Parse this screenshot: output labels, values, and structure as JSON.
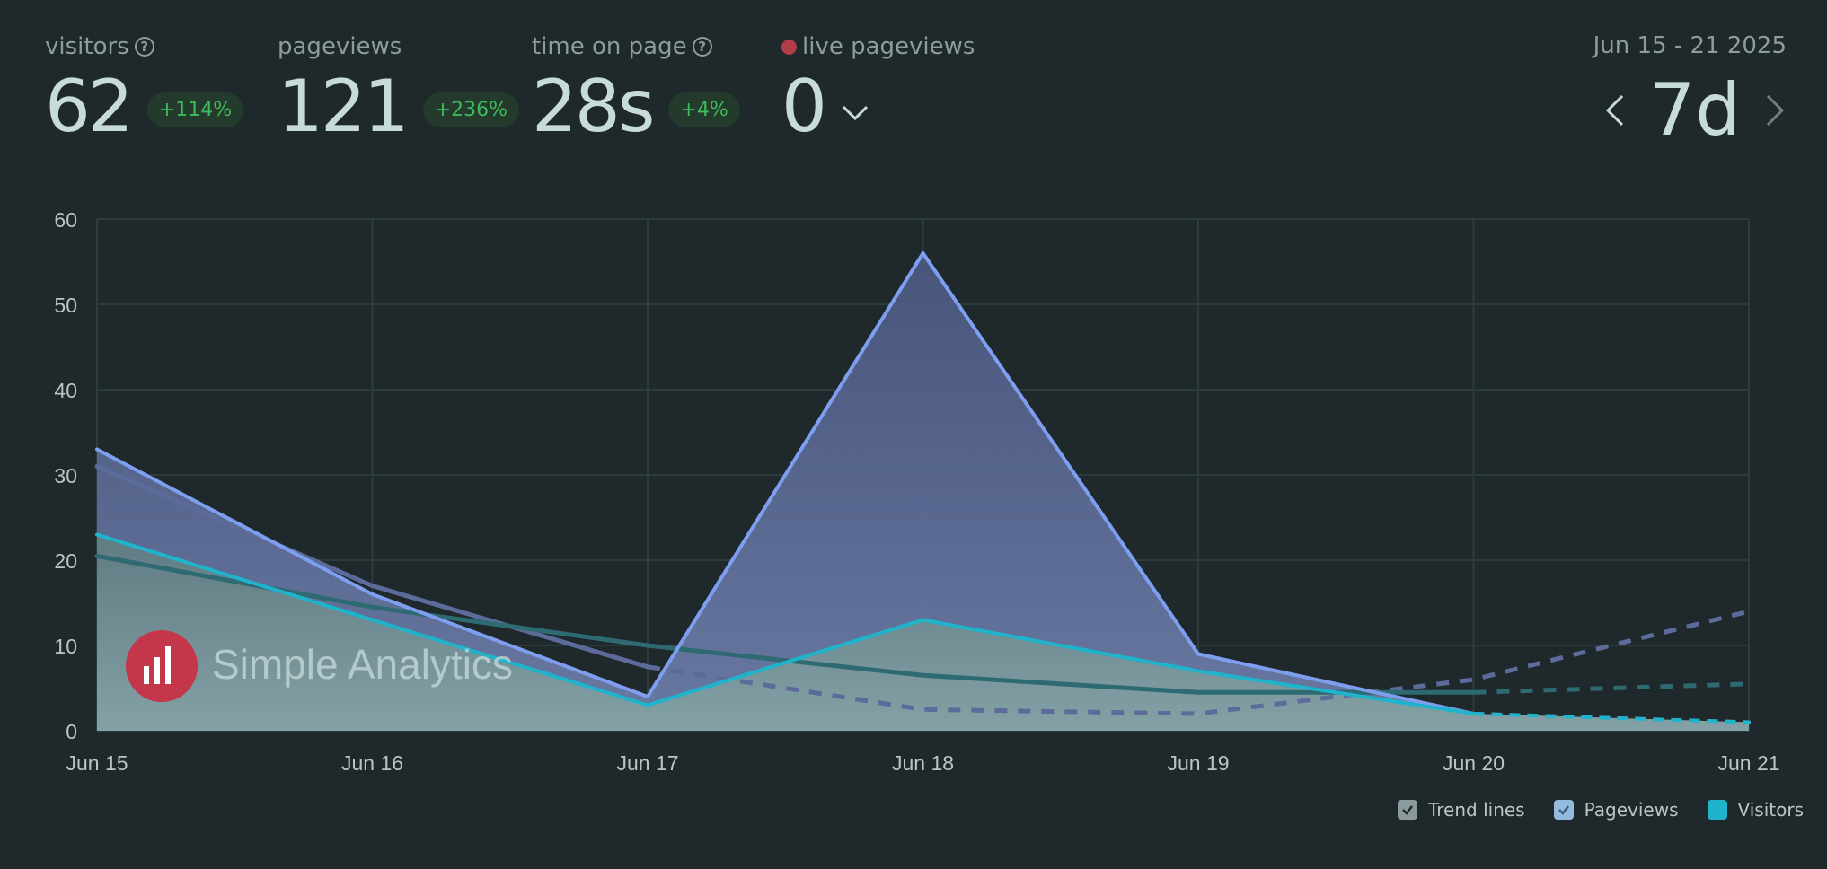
{
  "stats": {
    "visitors": {
      "label": "visitors",
      "value": "62",
      "change": "+114%"
    },
    "pageviews": {
      "label": "pageviews",
      "value": "121",
      "change": "+236%"
    },
    "time_on_page": {
      "label": "time on page",
      "value": "28s",
      "change": "+4%"
    },
    "live": {
      "label": "live pageviews",
      "value": "0"
    }
  },
  "period": {
    "date_range": "Jun 15 - 21 2025",
    "value": "7d"
  },
  "legend": {
    "trend": "Trend lines",
    "pageviews": "Pageviews",
    "visitors": "Visitors"
  },
  "watermark": {
    "text": "Simple Analytics"
  },
  "colors": {
    "background": "#1f282a",
    "pageviews": "#7e9ef0",
    "visitors": "#1fb3cc",
    "badge_text": "#3dbb5a",
    "live_dot": "#b23c4a",
    "logo": "#c4364a"
  },
  "chart_data": {
    "type": "area",
    "categories": [
      "Jun 15",
      "Jun 16",
      "Jun 17",
      "Jun 18",
      "Jun 19",
      "Jun 20",
      "Jun 21"
    ],
    "ylim": [
      0,
      60
    ],
    "yticks": [
      0,
      10,
      20,
      30,
      40,
      50,
      60
    ],
    "series": [
      {
        "name": "Pageviews",
        "values": [
          33,
          16,
          4,
          56,
          9,
          2,
          1
        ]
      },
      {
        "name": "Visitors",
        "values": [
          23,
          13,
          3,
          13,
          7,
          2,
          1
        ]
      }
    ],
    "trend_lines": [
      {
        "name": "Pageviews trend",
        "values": [
          31,
          17,
          7.5,
          2.5,
          2,
          6,
          14
        ]
      },
      {
        "name": "Visitors trend",
        "values": [
          20.5,
          14.5,
          10,
          6.5,
          4.5,
          4.5,
          5.5
        ]
      }
    ],
    "xlabel": "",
    "ylabel": ""
  }
}
